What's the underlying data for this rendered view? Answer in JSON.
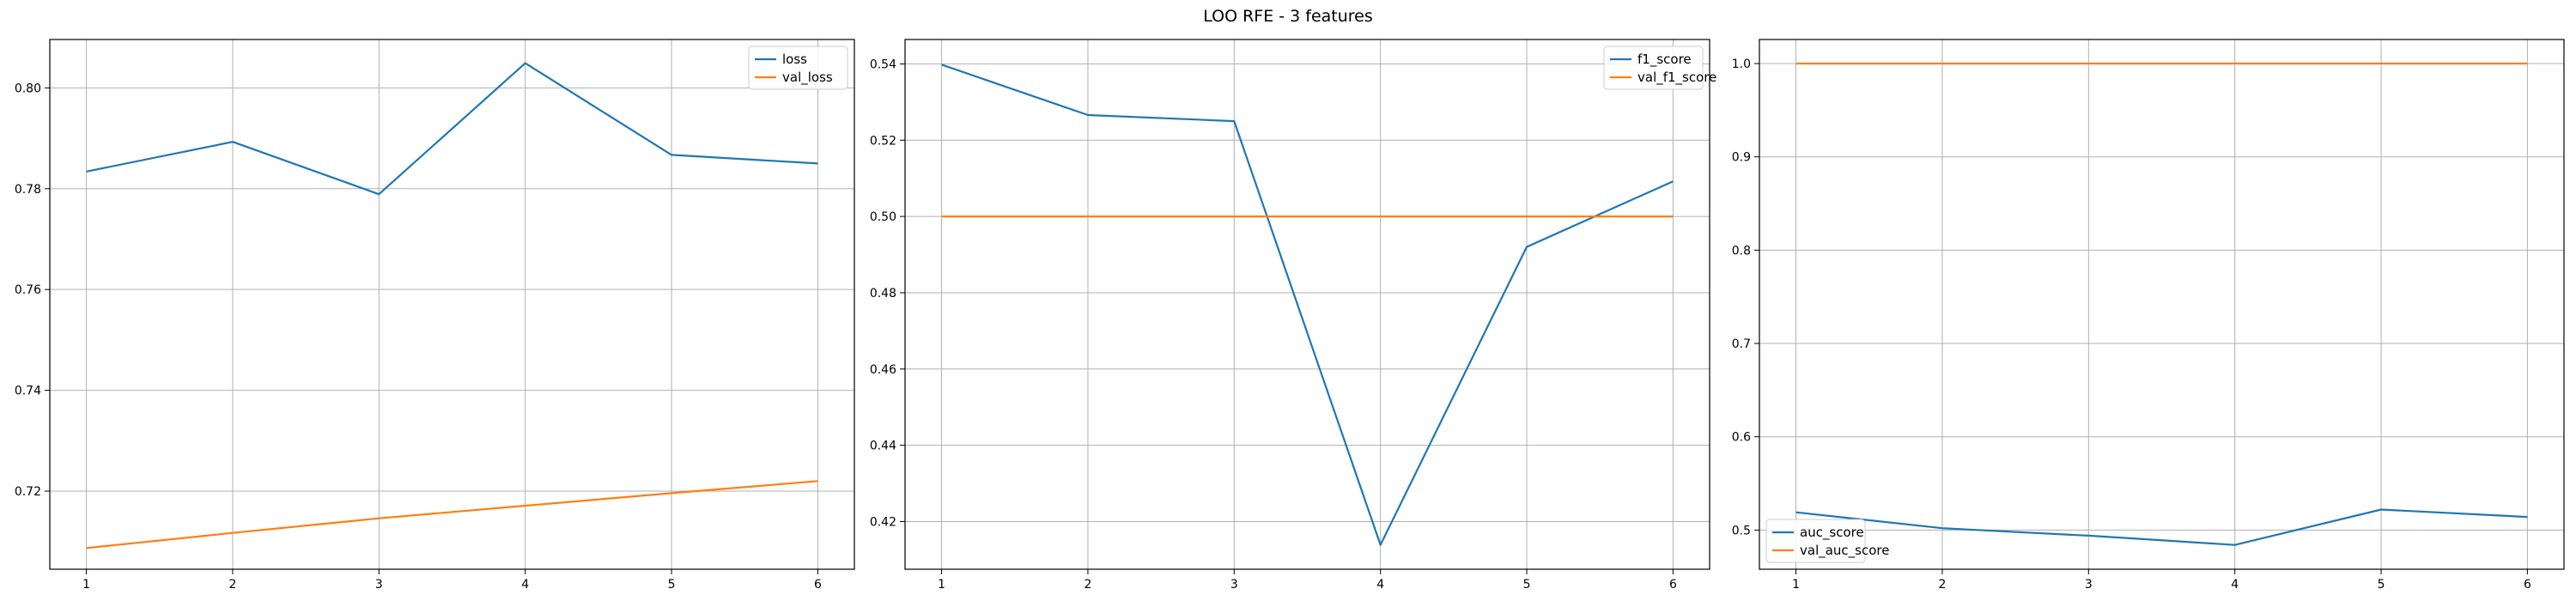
{
  "figure": {
    "title": "LOO RFE - 3 features"
  },
  "chart_data": [
    {
      "type": "line",
      "x": [
        1,
        2,
        3,
        4,
        5,
        6
      ],
      "xticks": [
        1,
        2,
        3,
        4,
        5,
        6
      ],
      "xlim": [
        0.75,
        6.25
      ],
      "ylim": [
        0.7045,
        0.8096
      ],
      "yticks": [
        0.72,
        0.74,
        0.76,
        0.78,
        0.8
      ],
      "grid": true,
      "legend_position": "top-right",
      "series": [
        {
          "name": "loss",
          "color": "#1f77b4",
          "values": [
            0.7834,
            0.7893,
            0.7789,
            0.8049,
            0.7867,
            0.785
          ]
        },
        {
          "name": "val_loss",
          "color": "#ff7f0e",
          "values": [
            0.7087,
            0.7117,
            0.7146,
            0.7171,
            0.7196,
            0.722
          ]
        }
      ]
    },
    {
      "type": "line",
      "x": [
        1,
        2,
        3,
        4,
        5,
        6
      ],
      "xticks": [
        1,
        2,
        3,
        4,
        5,
        6
      ],
      "xlim": [
        0.75,
        6.25
      ],
      "ylim": [
        0.4075,
        0.5464
      ],
      "yticks": [
        0.42,
        0.44,
        0.46,
        0.48,
        0.5,
        0.52,
        0.54
      ],
      "grid": true,
      "legend_position": "top-right",
      "series": [
        {
          "name": "f1_score",
          "color": "#1f77b4",
          "values": [
            0.5398,
            0.5266,
            0.525,
            0.4139,
            0.492,
            0.5092
          ]
        },
        {
          "name": "val_f1_score",
          "color": "#ff7f0e",
          "values": [
            0.5,
            0.5,
            0.5,
            0.5,
            0.5,
            0.5
          ]
        }
      ]
    },
    {
      "type": "line",
      "x": [
        1,
        2,
        3,
        4,
        5,
        6
      ],
      "xticks": [
        1,
        2,
        3,
        4,
        5,
        6
      ],
      "xlim": [
        0.75,
        6.25
      ],
      "ylim": [
        0.458,
        1.0258
      ],
      "yticks": [
        0.5,
        0.6,
        0.7,
        0.8,
        0.9,
        1.0
      ],
      "grid": true,
      "legend_position": "bottom-left",
      "series": [
        {
          "name": "auc_score",
          "color": "#1f77b4",
          "values": [
            0.519,
            0.502,
            0.494,
            0.484,
            0.522,
            0.514
          ]
        },
        {
          "name": "val_auc_score",
          "color": "#ff7f0e",
          "values": [
            1.0,
            1.0,
            1.0,
            1.0,
            1.0,
            1.0
          ]
        }
      ]
    }
  ]
}
